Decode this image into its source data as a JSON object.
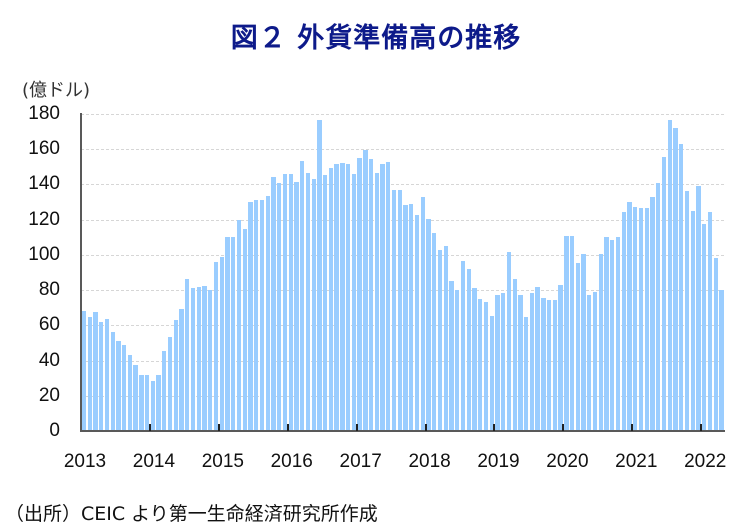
{
  "chart_data": {
    "type": "bar",
    "title": "図２ 外貨準備高の推移",
    "ylabel": "(億ドル)",
    "xlabel": "",
    "ylim": [
      0,
      180
    ],
    "yticks": [
      0,
      20,
      40,
      60,
      80,
      100,
      120,
      140,
      160,
      180
    ],
    "xticks": [
      "2013",
      "2014",
      "2015",
      "2016",
      "2017",
      "2018",
      "2019",
      "2020",
      "2021",
      "2022"
    ],
    "grid": true,
    "legend": null,
    "frequency": "monthly",
    "start": "2013-01",
    "end": "2022-04",
    "color": "#9acdff",
    "series": [
      {
        "name": "外貨準備高",
        "values": [
          68.2,
          64.8,
          67.6,
          61.7,
          63.4,
          56.0,
          51.2,
          48.8,
          42.9,
          37.5,
          31.6,
          31.6,
          28.2,
          31.6,
          45.3,
          53.3,
          62.9,
          69.3,
          86.5,
          81.3,
          81.7,
          82.3,
          80.0,
          95.8,
          98.7,
          109.9,
          110.3,
          120.0,
          114.9,
          130.1,
          130.9,
          130.9,
          133.7,
          144.4,
          141.0,
          146.1,
          146.1,
          141.5,
          153.1,
          146.3,
          143.2,
          176.8,
          145.1,
          149.5,
          151.4,
          152.2,
          151.4,
          145.7,
          154.9,
          159.6,
          154.3,
          146.3,
          151.4,
          152.6,
          137.1,
          137.1,
          128.4,
          129.0,
          122.5,
          133.0,
          120.6,
          112.4,
          102.9,
          104.8,
          85.3,
          80.0,
          96.6,
          91.8,
          81.1,
          74.7,
          73.5,
          65.1,
          77.0,
          78.1,
          101.9,
          86.1,
          77.0,
          64.8,
          78.5,
          81.5,
          75.4,
          74.3,
          74.3,
          82.9,
          111.0,
          110.5,
          95.2,
          100.6,
          77.5,
          78.9,
          100.6,
          110.1,
          108.2,
          110.1,
          124.2,
          130.1,
          127.0,
          126.7,
          126.7,
          133.0,
          140.8,
          155.6,
          176.8,
          171.8,
          163.2,
          136.2,
          124.8,
          139.4,
          117.7,
          124.2,
          98.3,
          80.0
        ]
      }
    ]
  },
  "title": "図２ 外貨準備高の推移",
  "unit_label": "(億ドル)",
  "source": "（出所）CEIC より第一生命経済研究所作成"
}
